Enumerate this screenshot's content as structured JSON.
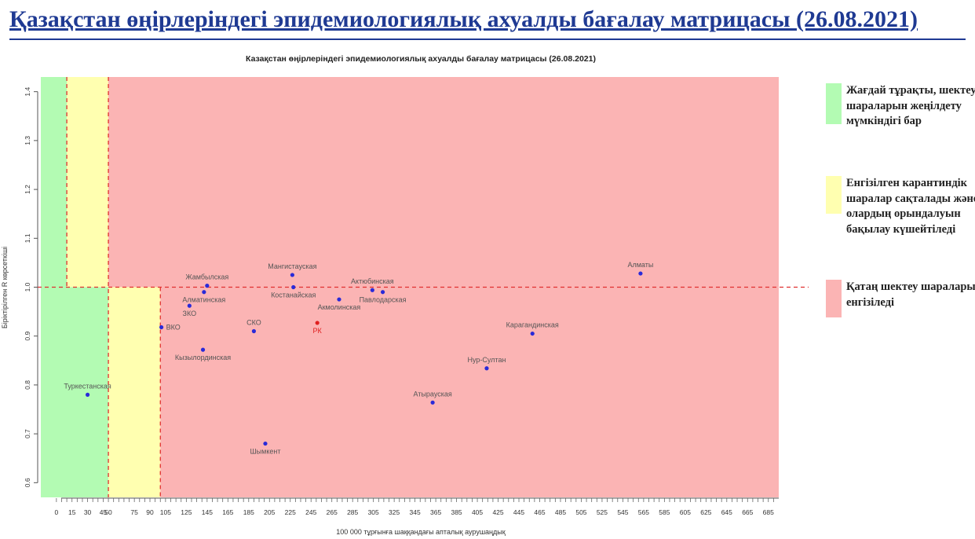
{
  "slide_title": "Қазақстан өңірлеріндегі эпидемиологиялық ахуалды бағалау матрицасы  (26.08.2021)",
  "legend": [
    {
      "color": "#b3fbb3",
      "text": "Жағдай тұрақты, шектеу шараларын жеңілдету мүмкіндігі бар"
    },
    {
      "color": "#ffffb0",
      "text": "Енгізілген карантиндік шаралар сақталады және олардың орындалуын бақылау күшейтіледі"
    },
    {
      "color": "#fbb4b4",
      "text": "Қатаң шектеу шаралары енгізіледі"
    }
  ],
  "chart_data": {
    "type": "scatter",
    "title": "Казақстан өңірлеріндегі эпидемиологиялық ахуалды бағалау матрицасы  (26.08.2021)",
    "xlabel": "100 000 тұрғынға шаққандағы апталық аурушаңдық",
    "ylabel": "Біріктірілген R көрсеткіші",
    "xlim": [
      -15,
      695
    ],
    "ylim": [
      0.57,
      1.43
    ],
    "x_ticks": [
      0,
      15,
      30,
      45,
      50,
      75,
      90,
      105,
      125,
      145,
      165,
      185,
      205,
      225,
      245,
      265,
      285,
      305,
      325,
      345,
      365,
      385,
      405,
      425,
      445,
      465,
      485,
      505,
      525,
      545,
      565,
      585,
      605,
      625,
      645,
      665,
      685
    ],
    "y_ticks": [
      0.6,
      0.7,
      0.8,
      0.9,
      1.0,
      1.1,
      1.2,
      1.3,
      1.4
    ],
    "y_threshold": 1.0,
    "zones": [
      {
        "color": "#b3fbb3",
        "x": [
          -15,
          50
        ],
        "y": [
          0.57,
          1.43
        ]
      },
      {
        "color": "#ffffb0",
        "x": [
          50,
          100
        ],
        "y": [
          0.57,
          1.0
        ]
      },
      {
        "color": "#ffffb0",
        "x": [
          10,
          50
        ],
        "y": [
          1.0,
          1.43
        ]
      },
      {
        "color": "#fbb4b4",
        "x": [
          50,
          695
        ],
        "y": [
          1.0,
          1.43
        ]
      },
      {
        "color": "#fbb4b4",
        "x": [
          100,
          695
        ],
        "y": [
          0.57,
          1.0
        ]
      }
    ],
    "vlines": [
      {
        "x": 10,
        "y": [
          1.0,
          1.43
        ]
      },
      {
        "x": 50,
        "y": [
          0.57,
          1.43
        ]
      },
      {
        "x": 100,
        "y": [
          0.57,
          1.0
        ]
      }
    ],
    "points": [
      {
        "label": "Туркестанская",
        "x": 30,
        "y": 0.78,
        "color": "#2a2ad8",
        "label_color": "#555555",
        "label_pos": "above"
      },
      {
        "label": "ВКО",
        "x": 101,
        "y": 0.918,
        "color": "#2a2ad8",
        "label_color": "#555555",
        "label_pos": "right"
      },
      {
        "label": "Жамбылская",
        "x": 145,
        "y": 1.003,
        "color": "#2a2ad8",
        "label_color": "#555555",
        "label_pos": "above"
      },
      {
        "label": "Алматинская",
        "x": 142,
        "y": 0.99,
        "color": "#2a2ad8",
        "label_color": "#555555",
        "label_pos": "below"
      },
      {
        "label": "ЗКО",
        "x": 128,
        "y": 0.962,
        "color": "#2a2ad8",
        "label_color": "#555555",
        "label_pos": "below"
      },
      {
        "label": "Кызылординская",
        "x": 141,
        "y": 0.872,
        "color": "#2a2ad8",
        "label_color": "#555555",
        "label_pos": "below"
      },
      {
        "label": "СКО",
        "x": 190,
        "y": 0.91,
        "color": "#2a2ad8",
        "label_color": "#555555",
        "label_pos": "above"
      },
      {
        "label": "Шымкент",
        "x": 201,
        "y": 0.68,
        "color": "#2a2ad8",
        "label_color": "#555555",
        "label_pos": "below"
      },
      {
        "label": "Мангистауская",
        "x": 227,
        "y": 1.025,
        "color": "#2a2ad8",
        "label_color": "#555555",
        "label_pos": "above"
      },
      {
        "label": "Костанайская",
        "x": 228,
        "y": 1.0,
        "color": "#2a2ad8",
        "label_color": "#555555",
        "label_pos": "below"
      },
      {
        "label": "РК",
        "x": 251,
        "y": 0.927,
        "color": "#e02020",
        "label_color": "#e02020",
        "label_pos": "below"
      },
      {
        "label": "Акмолинская",
        "x": 272,
        "y": 0.975,
        "color": "#2a2ad8",
        "label_color": "#555555",
        "label_pos": "below"
      },
      {
        "label": "Актюбинская",
        "x": 304,
        "y": 0.994,
        "color": "#2a2ad8",
        "label_color": "#555555",
        "label_pos": "above"
      },
      {
        "label": "Павлодарская",
        "x": 314,
        "y": 0.99,
        "color": "#2a2ad8",
        "label_color": "#555555",
        "label_pos": "below"
      },
      {
        "label": "Атырауская",
        "x": 362,
        "y": 0.764,
        "color": "#2a2ad8",
        "label_color": "#555555",
        "label_pos": "above"
      },
      {
        "label": "Нур-Султан",
        "x": 414,
        "y": 0.834,
        "color": "#2a2ad8",
        "label_color": "#555555",
        "label_pos": "above"
      },
      {
        "label": "Карагандинская",
        "x": 458,
        "y": 0.905,
        "color": "#2a2ad8",
        "label_color": "#555555",
        "label_pos": "above"
      },
      {
        "label": "Алматы",
        "x": 562,
        "y": 1.028,
        "color": "#2a2ad8",
        "label_color": "#555555",
        "label_pos": "above"
      }
    ]
  }
}
